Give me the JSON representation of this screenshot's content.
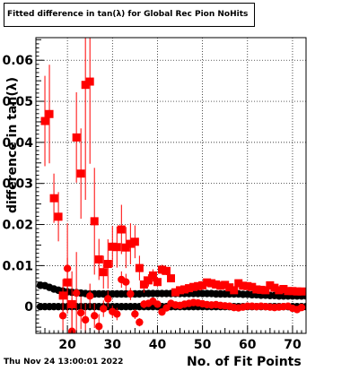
{
  "title": "Fitted difference in tan(λ) for Global Rec Pion NoHits",
  "timestamp": "Thu Nov 24 13:00:01 2022",
  "chart_data": {
    "type": "scatter",
    "xlabel": "No. of Fit Points",
    "ylabel": "difference in tan(λ)",
    "xlim": [
      13,
      73
    ],
    "ylim": [
      -0.0065,
      0.0655
    ],
    "grid": true,
    "xticks": [
      20,
      30,
      40,
      50,
      60,
      70
    ],
    "yticks": [
      0,
      0.01,
      0.02,
      0.03,
      0.04,
      0.05,
      0.06
    ],
    "ytick_labels": [
      "0",
      "0.01",
      "0.02",
      "0.03",
      "0.04",
      "0.05",
      "0.06"
    ],
    "series": [
      {
        "color": "#ff0000",
        "marker": "square",
        "x": [
          15,
          16,
          17,
          18,
          19,
          20,
          21,
          22,
          23,
          24,
          25,
          26,
          27,
          28,
          29,
          30,
          31,
          32,
          33,
          34,
          35,
          36,
          37,
          38,
          39,
          40,
          41,
          42,
          43,
          44,
          45,
          46,
          47,
          48,
          49,
          50,
          51,
          52,
          53,
          54,
          55,
          56,
          57,
          58,
          59,
          60,
          61,
          62,
          63,
          64,
          65,
          66,
          67,
          68,
          69,
          70,
          71,
          72
        ],
        "y": [
          0.0452,
          0.0469,
          0.0264,
          0.0219,
          0.0027,
          0.0059,
          0.0006,
          0.0412,
          0.0324,
          0.054,
          0.0548,
          0.0208,
          0.0115,
          0.0084,
          0.0104,
          0.0146,
          0.0145,
          0.0188,
          0.0144,
          0.0153,
          0.0158,
          0.0094,
          0.0054,
          0.0064,
          0.0076,
          0.006,
          0.009,
          0.0087,
          0.0069,
          0.0035,
          0.004,
          0.0042,
          0.0045,
          0.0048,
          0.005,
          0.0052,
          0.0059,
          0.0057,
          0.0054,
          0.0051,
          0.0053,
          0.0047,
          0.004,
          0.0057,
          0.0051,
          0.005,
          0.0048,
          0.0042,
          0.0041,
          0.004,
          0.0052,
          0.0046,
          0.004,
          0.0043,
          0.0038,
          0.0038,
          0.0037,
          0.0037
        ],
        "yerr": [
          0.011,
          0.012,
          0.006,
          0.006,
          0.004,
          0.006,
          0.008,
          0.011,
          0.011,
          0.028,
          0.02,
          0.013,
          0.005,
          0.004,
          0.006,
          0.005,
          0.005,
          0.006,
          0.005,
          0.005,
          0.004,
          0.003,
          0.002,
          0.0015,
          0.0015,
          0.0012,
          0.0012,
          0.001,
          0.0008,
          0.0006,
          0.0005,
          0.0005,
          0.0004,
          0.0004,
          0.0004,
          0.0004,
          0.0004,
          0.0004,
          0.0004,
          0.0004,
          0.0004,
          0.0004,
          0.0004,
          0.0004,
          0.0004,
          0.0004,
          0.0004,
          0.0004,
          0.0004,
          0.0004,
          0.0004,
          0.0004,
          0.0004,
          0.0004,
          0.0004,
          0.0004,
          0.0004,
          0.0004
        ]
      },
      {
        "color": "#ff0000",
        "marker": "circle",
        "x": [
          19,
          20,
          21,
          22,
          23,
          24,
          25,
          26,
          27,
          28,
          29,
          30,
          31,
          32,
          33,
          34,
          35,
          36,
          37,
          38,
          39,
          40,
          41,
          42,
          43,
          44,
          45,
          46,
          47,
          48,
          49,
          50,
          51,
          52,
          53,
          54,
          55,
          56,
          57,
          58,
          59,
          60,
          61,
          62,
          63,
          64,
          65,
          66,
          67,
          68,
          69,
          70,
          71,
          72
        ],
        "y": [
          -0.0022,
          0.0093,
          -0.006,
          0.0033,
          -0.0015,
          -0.0032,
          0.0026,
          -0.0022,
          -0.0048,
          -0.0005,
          0.0019,
          -0.0012,
          -0.0018,
          0.0066,
          0.006,
          0.0031,
          -0.0018,
          -0.0038,
          0.0006,
          0.0008,
          0.0013,
          0.0006,
          -0.0013,
          -0.0003,
          0.0008,
          0.0004,
          0.0003,
          0.0006,
          0.0008,
          0.001,
          0.0009,
          0.0007,
          0.0005,
          0.0004,
          0.0005,
          0.0003,
          0.0002,
          0.0001,
          -0.0002,
          -0.0003,
          -0.0001,
          0.0001,
          0.0001,
          0.0,
          0.0001,
          0.0,
          -0.0001,
          -0.0002,
          -0.0001,
          0.0,
          0.0001,
          -0.0004,
          -0.0007,
          -0.0002
        ],
        "yerr": [
          0.004,
          0.011,
          0.008,
          0.01,
          0.004,
          0.004,
          0.003,
          0.003,
          0.003,
          0.002,
          0.002,
          0.0015,
          0.0015,
          0.002,
          0.002,
          0.0015,
          0.0012,
          0.001,
          0.001,
          0.0008,
          0.0008,
          0.0006,
          0.0005,
          0.0005,
          0.0004,
          0.0004,
          0.0003,
          0.0003,
          0.0003,
          0.0003,
          0.0003,
          0.0003,
          0.0003,
          0.0003,
          0.0003,
          0.0003,
          0.0003,
          0.0003,
          0.0003,
          0.0003,
          0.0003,
          0.0003,
          0.0003,
          0.0003,
          0.0003,
          0.0003,
          0.0003,
          0.0003,
          0.0003,
          0.0003,
          0.0003,
          0.0003,
          0.0003,
          0.0003
        ]
      },
      {
        "color": "#000000",
        "marker": "circle",
        "x": [
          14,
          15,
          16,
          17,
          18,
          19,
          20,
          21,
          22,
          23,
          24,
          25,
          26,
          27,
          28,
          29,
          30,
          31,
          32,
          33,
          34,
          35,
          36,
          37,
          38,
          39,
          40,
          41,
          42,
          43,
          44,
          45,
          46,
          47,
          48,
          49,
          50,
          51,
          52,
          53,
          54,
          55,
          56,
          57,
          58,
          59,
          60,
          61,
          62,
          63,
          64,
          65,
          66,
          67,
          68,
          69,
          70,
          71,
          72,
          73
        ],
        "y": [
          0.0052,
          0.0051,
          0.0047,
          0.0043,
          0.004,
          0.0038,
          0.0036,
          0.0035,
          0.0034,
          0.0033,
          0.0032,
          0.0031,
          0.0031,
          0.0031,
          0.0031,
          0.0031,
          0.0031,
          0.0031,
          0.0031,
          0.0031,
          0.0031,
          0.0031,
          0.0031,
          0.0032,
          0.0032,
          0.0032,
          0.0032,
          0.0032,
          0.0032,
          0.0032,
          0.0032,
          0.0032,
          0.0032,
          0.0032,
          0.0032,
          0.0032,
          0.0032,
          0.0032,
          0.0032,
          0.0031,
          0.0031,
          0.0031,
          0.0031,
          0.0031,
          0.0031,
          0.003,
          0.003,
          0.0029,
          0.0029,
          0.0028,
          0.0028,
          0.0027,
          0.0027,
          0.0026,
          0.0026,
          0.0026,
          0.0026,
          0.0026,
          0.0026,
          0.0026
        ]
      },
      {
        "color": "#000000",
        "marker": "circle",
        "x": [
          14,
          15,
          16,
          17,
          18,
          19,
          20,
          21,
          22,
          23,
          24,
          25,
          26,
          27,
          28,
          29,
          30,
          31,
          32,
          33,
          34,
          35,
          36,
          37,
          38,
          39,
          40,
          41,
          42,
          43,
          44,
          45,
          46,
          47,
          48,
          49,
          50,
          51,
          52,
          53,
          54,
          55,
          56,
          57,
          58,
          59,
          60,
          61,
          62,
          63,
          64,
          65,
          66,
          67,
          68,
          69,
          70,
          71,
          72,
          73
        ],
        "y": [
          0.0,
          0.0,
          0.0,
          0.0,
          0.0,
          0.0,
          0.0,
          0.0,
          0.0,
          0.0,
          0.0,
          0.0,
          0.0,
          0.0,
          0.0,
          0.0,
          0.0,
          0.0,
          0.0,
          0.0,
          0.0,
          0.0,
          0.0,
          0.0,
          0.0,
          0.0,
          0.0,
          0.0,
          0.0,
          0.0,
          0.0,
          0.0,
          0.0,
          0.0,
          0.0,
          0.0,
          0.0,
          0.0,
          0.0,
          0.0,
          0.0,
          0.0,
          0.0,
          0.0,
          0.0,
          0.0,
          0.0,
          0.0,
          0.0,
          0.0,
          0.0,
          0.0,
          0.0,
          0.0,
          0.0,
          0.0,
          0.0,
          0.0,
          0.0,
          0.0
        ]
      }
    ]
  }
}
